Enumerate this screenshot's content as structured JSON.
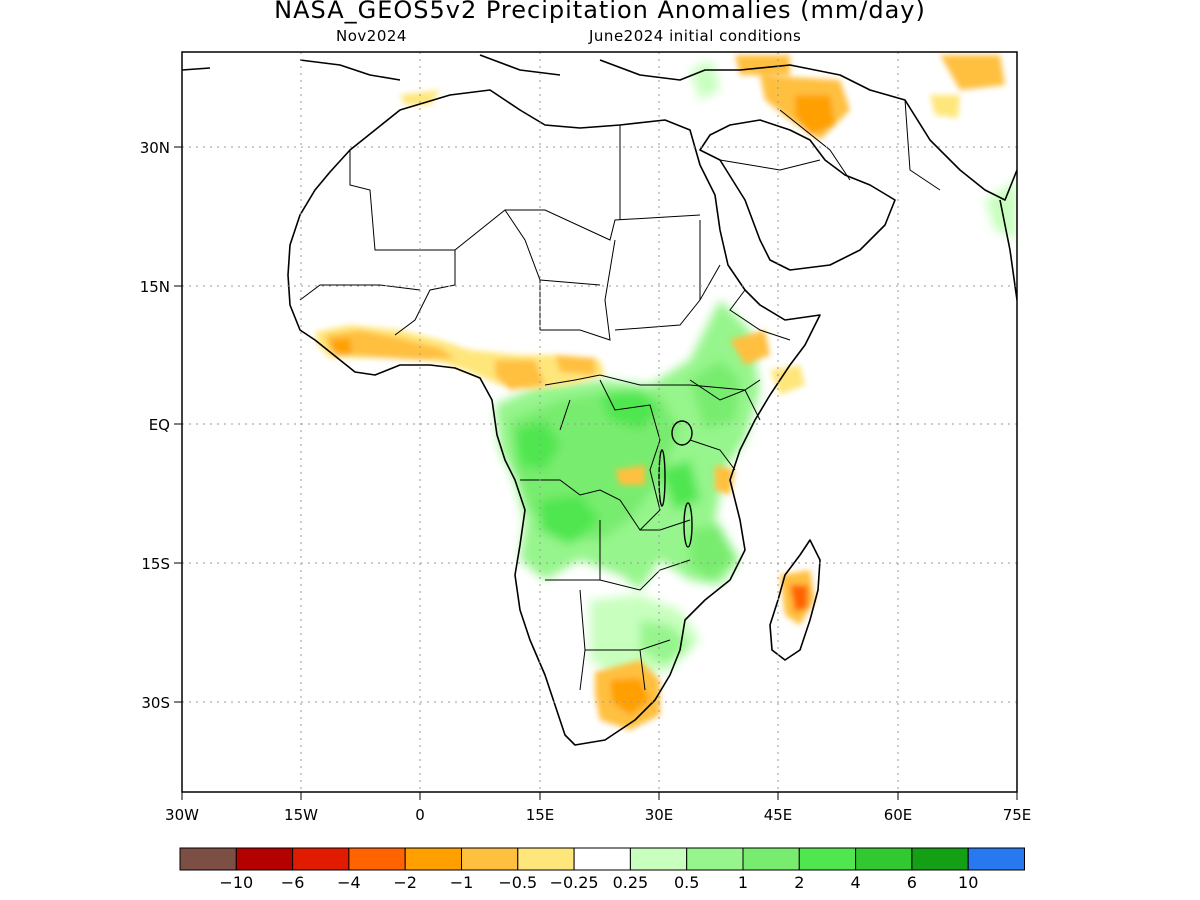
{
  "title": "NASA_GEOS5v2 Precipitation Anomalies (mm/day)",
  "subtitle_left": "Nov2024",
  "subtitle_right": "June2024 initial conditions",
  "map": {
    "lon_range": [
      -30,
      75
    ],
    "lat_range": [
      -46,
      46
    ],
    "x_ticks": [
      "30W",
      "15W",
      "0",
      "15E",
      "30E",
      "45E",
      "60E",
      "75E"
    ],
    "y_ticks": [
      "30N",
      "15N",
      "EQ",
      "15S",
      "30S"
    ],
    "grid": "dotted"
  },
  "colorbar": {
    "colors": [
      "#7b4f43",
      "#b50000",
      "#e11b00",
      "#ff6400",
      "#ffa000",
      "#ffc040",
      "#ffe67a",
      "#ffffff",
      "#c8ffbe",
      "#96f58c",
      "#78ec6e",
      "#50e650",
      "#32c832",
      "#14a014",
      "#2878f0"
    ],
    "labels": [
      "−10",
      "−6",
      "−4",
      "−2",
      "−1",
      "−0.5",
      "−0.25",
      "0.25",
      "0.5",
      "1",
      "2",
      "4",
      "6",
      "10"
    ]
  }
}
